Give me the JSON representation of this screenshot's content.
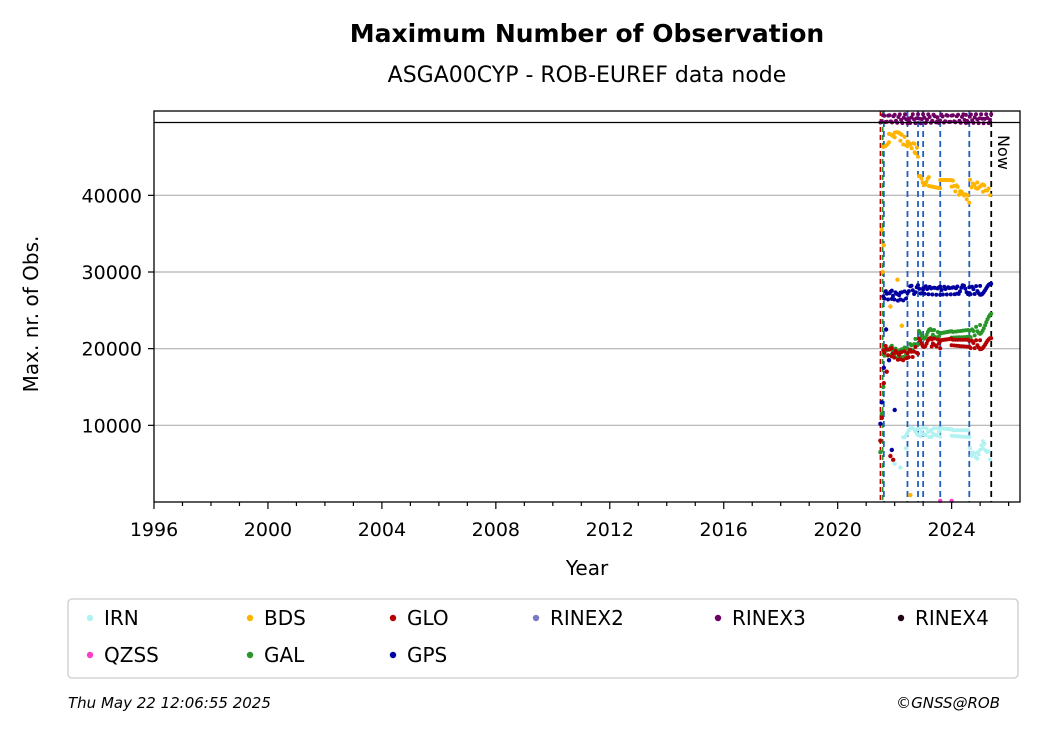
{
  "chart_data": {
    "type": "scatter",
    "title": "Maximum Number of Observation",
    "subtitle": "ASGA00CYP - ROB-EUREF data node",
    "xlabel": "Year",
    "ylabel": "Max. nr. of Obs.",
    "xlim": [
      1996,
      2026.4
    ],
    "ylim": [
      0,
      51000
    ],
    "xticks": [
      "1996",
      "2000",
      "2004",
      "2008",
      "2012",
      "2016",
      "2020",
      "2024"
    ],
    "yticks": [
      "10000",
      "20000",
      "30000",
      "40000"
    ],
    "grid": "horizontal",
    "now_label": "Now",
    "now_x": 2025.39,
    "topline_y": 49500,
    "vlines_blue": [
      2021.62,
      2022.45,
      2022.82,
      2023.0,
      2023.6,
      2024.62
    ],
    "vline_green": 2021.58,
    "vline_red": 2021.5,
    "legend_position": "bottom",
    "legend": [
      {
        "name": "IRN",
        "color": "#b3f2f2"
      },
      {
        "name": "BDS",
        "color": "#ffb400"
      },
      {
        "name": "GLO",
        "color": "#b40000"
      },
      {
        "name": "RINEX2",
        "color": "#7a7ac8"
      },
      {
        "name": "RINEX3",
        "color": "#6e0064"
      },
      {
        "name": "RINEX4",
        "color": "#230014"
      },
      {
        "name": "QZSS",
        "color": "#ff3cc8"
      },
      {
        "name": "GAL",
        "color": "#2a962a"
      },
      {
        "name": "GPS",
        "color": "#0000a0"
      }
    ],
    "series": [
      {
        "name": "BDS",
        "color": "#ffb400",
        "segments": [
          {
            "x": [
              2021.6,
              2021.8,
              2022.0,
              2022.2,
              2022.45,
              2022.7,
              2022.82
            ],
            "y": [
              46500,
              47500,
              47800,
              47500,
              46800,
              46200,
              45500
            ]
          },
          {
            "x": [
              2022.85,
              2023.2,
              2023.6,
              2024.0,
              2024.3,
              2024.62
            ],
            "y": [
              42000,
              41800,
              41500,
              41500,
              40500,
              39500
            ]
          },
          {
            "x": [
              2024.65,
              2024.9,
              2025.1,
              2025.35
            ],
            "y": [
              41500,
              41200,
              41000,
              40500
            ]
          }
        ],
        "outliers": {
          "x": [
            2021.55,
            2021.58,
            2021.62,
            2021.7,
            2021.85,
            2022.1,
            2022.25,
            2022.55
          ],
          "y": [
            35500,
            30000,
            33500,
            27500,
            25500,
            29000,
            23000,
            900
          ]
        }
      },
      {
        "name": "GPS",
        "color": "#0000a0",
        "segments": [
          {
            "x": [
              2021.6,
              2021.9,
              2022.2,
              2022.45
            ],
            "y": [
              27000,
              27000,
              26800,
              27000
            ]
          },
          {
            "x": [
              2022.5,
              2023.0,
              2023.6,
              2024.2,
              2024.62,
              2025.0,
              2025.39
            ],
            "y": [
              27700,
              27700,
              27600,
              27700,
              27700,
              27600,
              27900
            ]
          }
        ],
        "outliers": {
          "x": [
            2021.5,
            2021.55,
            2021.62,
            2021.7,
            2021.8,
            2021.9,
            2022.0
          ],
          "y": [
            10200,
            13000,
            17500,
            22500,
            18500,
            6800,
            12000
          ]
        }
      },
      {
        "name": "GAL",
        "color": "#2a962a",
        "segments": [
          {
            "x": [
              2021.6,
              2021.9,
              2022.2,
              2022.45,
              2022.82
            ],
            "y": [
              19500,
              19800,
              19300,
              19800,
              21000
            ]
          },
          {
            "x": [
              2022.85,
              2023.3,
              2023.6,
              2024.0,
              2024.62,
              2025.0,
              2025.39
            ],
            "y": [
              21800,
              22000,
              21500,
              21800,
              22000,
              22500,
              24000
            ]
          }
        ],
        "outliers": {
          "x": [
            2021.5,
            2021.55,
            2021.6
          ],
          "y": [
            6500,
            11500,
            15000
          ]
        }
      },
      {
        "name": "GLO",
        "color": "#b40000",
        "segments": [
          {
            "x": [
              2021.6,
              2021.9,
              2022.2,
              2022.45,
              2022.82
            ],
            "y": [
              20000,
              19500,
              19000,
              19200,
              19800
            ]
          },
          {
            "x": [
              2022.85,
              2023.3,
              2023.6,
              2024.0,
              2024.62,
              2025.0,
              2025.39
            ],
            "y": [
              20800,
              20800,
              20600,
              20800,
              20700,
              20500,
              20800
            ]
          }
        ],
        "outliers": {
          "x": [
            2021.5,
            2021.55,
            2021.62,
            2021.72,
            2021.85,
            2021.95
          ],
          "y": [
            8000,
            11000,
            15500,
            17000,
            6000,
            5500
          ]
        }
      },
      {
        "name": "IRN",
        "color": "#b3f2f2",
        "segments": [
          {
            "x": [
              2022.3,
              2022.82,
              2023.3,
              2023.6,
              2024.0,
              2024.62
            ],
            "y": [
              9000,
              9200,
              9000,
              9100,
              9000,
              8900
            ]
          },
          {
            "x": [
              2024.65,
              2024.9,
              2025.1,
              2025.35
            ],
            "y": [
              6500,
              6000,
              7500,
              6000
            ]
          }
        ],
        "outliers": {
          "x": [
            2022.0,
            2022.2,
            2022.4
          ],
          "y": [
            5000,
            4500,
            7000
          ]
        }
      },
      {
        "name": "QZSS",
        "color": "#ff3cc8",
        "segments": [],
        "outliers": {
          "x": [
            2023.6,
            2024.0
          ],
          "y": [
            150,
            150
          ]
        }
      },
      {
        "name": "RINEX3",
        "color": "#6e0064",
        "segments": [
          {
            "x": [
              2021.5,
              2022.5,
              2023.5,
              2024.5,
              2025.39
            ],
            "y": [
              50000,
              50000,
              50000,
              50000,
              50000
            ]
          }
        ],
        "outliers": {
          "x": [],
          "y": []
        }
      }
    ]
  },
  "footer": {
    "timestamp": "Thu May 22 12:06:55 2025",
    "copyright": "©GNSS@ROB"
  }
}
